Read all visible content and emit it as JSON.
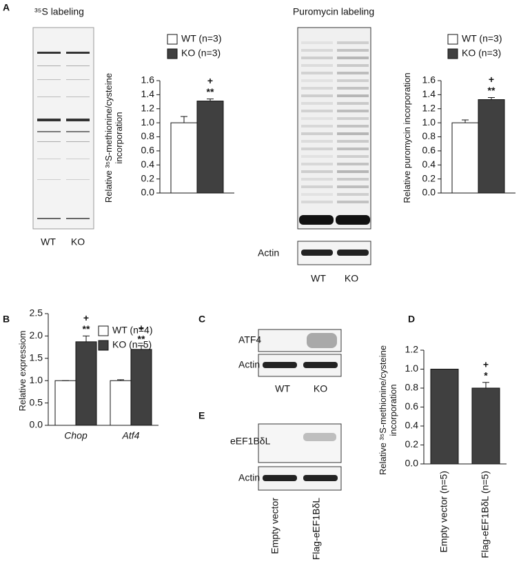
{
  "figure": {
    "panel_labels": [
      "A",
      "B",
      "C",
      "D",
      "E"
    ],
    "a_left": {
      "title": "³⁵S labeling",
      "lanes": [
        "WT",
        "KO"
      ]
    },
    "a_right": {
      "title": "Puromycin labeling",
      "loading": "Actin",
      "lanes": [
        "WT",
        "KO"
      ]
    },
    "c": {
      "rows": [
        "ATF4",
        "Actin"
      ],
      "lanes": [
        "WT",
        "KO"
      ]
    },
    "e": {
      "rows": [
        "eEF1BδL",
        "Actin"
      ],
      "lanes": [
        "Empty vector",
        "Flag-eEF1BδL"
      ]
    }
  },
  "chart_data": [
    {
      "type": "bar",
      "y_label": "Relative ³⁵S-methionine/cysteine incorporation",
      "categories": [
        null
      ],
      "series": [
        {
          "name": "WT (n=3)",
          "color": "#ffffff",
          "values": [
            1.0
          ],
          "errors": [
            0.09
          ]
        },
        {
          "name": "KO (n=3)",
          "color": "#404040",
          "values": [
            1.31
          ],
          "errors": [
            0.03
          ],
          "significance": [
            [
              "+",
              "**"
            ]
          ]
        }
      ],
      "ylim": [
        0,
        1.6
      ],
      "yticks": [
        {
          "value": 0,
          "label": "0.0"
        },
        0.2,
        0.4,
        0.6,
        0.8,
        {
          "value": 1,
          "label": "1.0"
        },
        1.2,
        1.4,
        1.6
      ]
    },
    {
      "type": "bar",
      "y_label": "Relative puromycin incorporation",
      "categories": [
        null
      ],
      "series": [
        {
          "name": "WT (n=3)",
          "color": "#ffffff",
          "values": [
            1.0
          ],
          "errors": [
            0.04
          ]
        },
        {
          "name": "KO (n=3)",
          "color": "#404040",
          "values": [
            1.33
          ],
          "errors": [
            0.03
          ],
          "significance": [
            [
              "+",
              "**"
            ]
          ]
        }
      ],
      "ylim": [
        0,
        1.6
      ],
      "yticks": [
        {
          "value": 0,
          "label": "0.0"
        },
        0.2,
        0.4,
        0.6,
        0.8,
        {
          "value": 1,
          "label": "1.0"
        },
        1.2,
        1.4,
        1.6
      ]
    },
    {
      "type": "bar",
      "y_label": "Relative expressiom",
      "categories": [
        "Chop",
        "Atf4"
      ],
      "series": [
        {
          "name": "WT (n=4)",
          "color": "#ffffff",
          "values": [
            1.0,
            1.0
          ],
          "errors": [
            0,
            0.02
          ]
        },
        {
          "name": "KO (n=5)",
          "color": "#404040",
          "values": [
            1.87,
            1.7
          ],
          "errors": [
            0.13,
            0.08
          ],
          "significance": [
            [
              "+",
              "**"
            ],
            [
              "+",
              "**"
            ]
          ]
        }
      ],
      "ylim": [
        0,
        2.5
      ],
      "yticks": [
        {
          "value": 0,
          "label": "0.0"
        },
        0.5,
        {
          "value": 1,
          "label": "1.0"
        },
        1.5,
        {
          "value": 2,
          "label": "2.0"
        },
        2.5
      ]
    },
    {
      "type": "bar",
      "y_label": "Relative ³⁵S-methionine/cysteine incorporation",
      "categories": [
        "Empty vector (n=5)",
        "Flag-eEF1BδL (n=5)"
      ],
      "series": [
        {
          "color": "#404040",
          "values": [
            1.0,
            0.8
          ],
          "errors": [
            0,
            0.06
          ],
          "significance": [
            null,
            [
              "+",
              "*"
            ]
          ]
        }
      ],
      "ylim": [
        0,
        1.2
      ],
      "yticks": [
        {
          "value": 0,
          "label": "0.0"
        },
        0.2,
        0.4,
        0.6,
        0.8,
        {
          "value": 1,
          "label": "1.0"
        },
        1.2
      ]
    }
  ]
}
